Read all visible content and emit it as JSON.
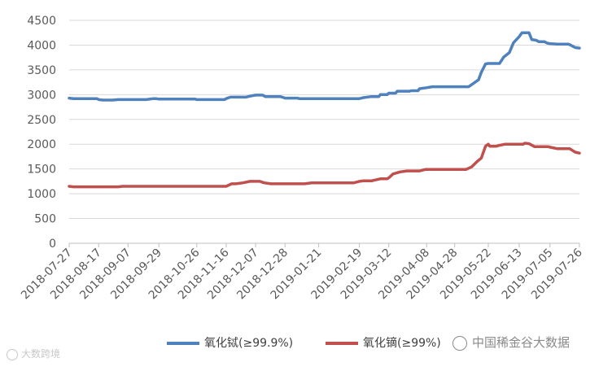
{
  "chart_data": {
    "type": "line",
    "title": "",
    "xlabel": "",
    "ylabel": "",
    "ylim": [
      0,
      4500
    ],
    "yticks": [
      0,
      500,
      1000,
      1500,
      2000,
      2500,
      3000,
      3500,
      4000,
      4500
    ],
    "xtick_labels": [
      "2018-07-27",
      "2018-08-17",
      "2018-09-07",
      "2018-09-29",
      "2018-10-26",
      "2018-11-16",
      "2018-12-07",
      "2018-12-28",
      "2019-01-21",
      "2019-02-19",
      "2019-03-12",
      "2019-04-08",
      "2019-04-28",
      "2019-05-22",
      "2019-06-13",
      "2019-07-05",
      "2019-07-26"
    ],
    "grid": "horizontal",
    "legend_position": "bottom",
    "series": [
      {
        "name": "氧化铽(≥99.9%)",
        "color": "#4f81bd",
        "points": [
          [
            "2018-07-27",
            2930
          ],
          [
            "2018-07-30",
            2920
          ],
          [
            "2018-08-10",
            2920
          ],
          [
            "2018-08-17",
            2900
          ],
          [
            "2018-08-20",
            2890
          ],
          [
            "2018-08-27",
            2890
          ],
          [
            "2018-08-31",
            2900
          ],
          [
            "2018-09-20",
            2900
          ],
          [
            "2018-09-25",
            2920
          ],
          [
            "2018-09-27",
            2920
          ],
          [
            "2018-09-29",
            2910
          ],
          [
            "2018-10-20",
            2910
          ],
          [
            "2018-10-26",
            2900
          ],
          [
            "2018-11-09",
            2900
          ],
          [
            "2018-11-16",
            2920
          ],
          [
            "2018-11-19",
            2950
          ],
          [
            "2018-11-30",
            2950
          ],
          [
            "2018-12-03",
            2970
          ],
          [
            "2018-12-07",
            2990
          ],
          [
            "2018-12-12",
            2990
          ],
          [
            "2018-12-14",
            2960
          ],
          [
            "2018-12-26",
            2950
          ],
          [
            "2018-12-28",
            2930
          ],
          [
            "2019-01-07",
            2920
          ],
          [
            "2019-02-19",
            2920
          ],
          [
            "2019-02-22",
            2940
          ],
          [
            "2019-02-27",
            2960
          ],
          [
            "2019-03-06",
            3000
          ],
          [
            "2019-03-12",
            3030
          ],
          [
            "2019-03-18",
            3070
          ],
          [
            "2019-03-28",
            3080
          ],
          [
            "2019-04-03",
            3120
          ],
          [
            "2019-04-08",
            3140
          ],
          [
            "2019-04-12",
            3160
          ],
          [
            "2019-05-08",
            3160
          ],
          [
            "2019-05-11",
            3220
          ],
          [
            "2019-05-15",
            3300
          ],
          [
            "2019-05-17",
            3450
          ],
          [
            "2019-05-20",
            3620
          ],
          [
            "2019-05-22",
            3630
          ],
          [
            "2019-05-30",
            3630
          ],
          [
            "2019-06-02",
            3760
          ],
          [
            "2019-06-06",
            3850
          ],
          [
            "2019-06-09",
            4050
          ],
          [
            "2019-06-13",
            4170
          ],
          [
            "2019-06-15",
            4250
          ],
          [
            "2019-06-20",
            4250
          ],
          [
            "2019-06-22",
            4110
          ],
          [
            "2019-06-25",
            4100
          ],
          [
            "2019-06-27",
            4070
          ],
          [
            "2019-07-01",
            4070
          ],
          [
            "2019-07-03",
            4040
          ],
          [
            "2019-07-05",
            4030
          ],
          [
            "2019-07-10",
            4020
          ],
          [
            "2019-07-19",
            4010
          ],
          [
            "2019-07-23",
            3950
          ],
          [
            "2019-07-26",
            3940
          ]
        ]
      },
      {
        "name": "氧化镝(≥99%)",
        "color": "#c0504d",
        "points": [
          [
            "2018-07-27",
            1150
          ],
          [
            "2018-07-30",
            1140
          ],
          [
            "2018-08-31",
            1140
          ],
          [
            "2018-09-03",
            1150
          ],
          [
            "2018-11-16",
            1150
          ],
          [
            "2018-11-20",
            1200
          ],
          [
            "2018-11-23",
            1200
          ],
          [
            "2018-11-28",
            1220
          ],
          [
            "2018-12-03",
            1250
          ],
          [
            "2018-12-10",
            1250
          ],
          [
            "2018-12-13",
            1220
          ],
          [
            "2018-12-18",
            1200
          ],
          [
            "2019-01-11",
            1200
          ],
          [
            "2019-01-16",
            1220
          ],
          [
            "2019-02-15",
            1220
          ],
          [
            "2019-02-19",
            1250
          ],
          [
            "2019-02-22",
            1260
          ],
          [
            "2019-03-01",
            1270
          ],
          [
            "2019-03-06",
            1300
          ],
          [
            "2019-03-12",
            1320
          ],
          [
            "2019-03-15",
            1400
          ],
          [
            "2019-03-20",
            1440
          ],
          [
            "2019-03-25",
            1460
          ],
          [
            "2019-04-03",
            1460
          ],
          [
            "2019-04-07",
            1490
          ],
          [
            "2019-05-06",
            1490
          ],
          [
            "2019-05-10",
            1540
          ],
          [
            "2019-05-14",
            1650
          ],
          [
            "2019-05-17",
            1720
          ],
          [
            "2019-05-20",
            1960
          ],
          [
            "2019-05-22",
            2000
          ],
          [
            "2019-05-23",
            1960
          ],
          [
            "2019-05-29",
            1970
          ],
          [
            "2019-06-03",
            2000
          ],
          [
            "2019-06-17",
            2020
          ],
          [
            "2019-06-20",
            2010
          ],
          [
            "2019-06-24",
            1950
          ],
          [
            "2019-07-05",
            1940
          ],
          [
            "2019-07-10",
            1910
          ],
          [
            "2019-07-19",
            1910
          ],
          [
            "2019-07-23",
            1840
          ],
          [
            "2019-07-26",
            1820
          ]
        ]
      }
    ]
  },
  "watermark_right": "中国稀金谷大数据",
  "watermark_left": "大数跨境"
}
